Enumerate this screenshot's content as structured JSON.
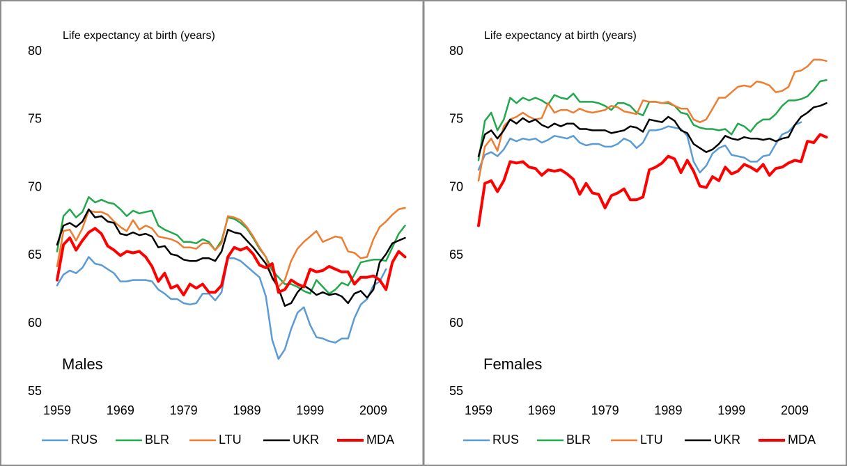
{
  "chart_data": [
    {
      "type": "line",
      "ylabel": "Life expectancy at birth (years)",
      "annotation": "Males",
      "x": [
        1959,
        1960,
        1961,
        1962,
        1963,
        1964,
        1965,
        1966,
        1967,
        1968,
        1969,
        1970,
        1971,
        1972,
        1973,
        1974,
        1975,
        1976,
        1977,
        1978,
        1979,
        1980,
        1981,
        1982,
        1983,
        1984,
        1985,
        1986,
        1987,
        1988,
        1989,
        1990,
        1991,
        1992,
        1993,
        1994,
        1995,
        1996,
        1997,
        1998,
        1999,
        2000,
        2001,
        2002,
        2003,
        2004,
        2005,
        2006,
        2007,
        2008,
        2009,
        2010,
        2011,
        2012,
        2013,
        2014
      ],
      "series": [
        {
          "name": "RUS",
          "color": "#5b9bd5",
          "linewidth": 2.5,
          "values": [
            62.8,
            63.6,
            63.9,
            63.7,
            64.1,
            64.9,
            64.4,
            64.3,
            64.0,
            63.7,
            63.1,
            63.1,
            63.2,
            63.2,
            63.2,
            63.1,
            62.5,
            62.2,
            61.8,
            61.8,
            61.5,
            61.4,
            61.5,
            62.2,
            62.2,
            61.7,
            62.3,
            64.8,
            64.8,
            64.6,
            64.2,
            63.8,
            63.4,
            62.0,
            58.8,
            57.4,
            58.1,
            59.6,
            60.8,
            61.2,
            59.9,
            59.0,
            58.9,
            58.7,
            58.6,
            58.9,
            58.9,
            60.4,
            61.4,
            61.8,
            62.8,
            63.1,
            64.0,
            null,
            null,
            null
          ]
        },
        {
          "name": "BLR",
          "color": "#22a84c",
          "linewidth": 2.5,
          "values": [
            65.3,
            67.9,
            68.4,
            67.8,
            68.2,
            69.3,
            68.9,
            69.1,
            68.9,
            68.8,
            68.4,
            67.9,
            68.3,
            68.1,
            68.2,
            68.3,
            67.2,
            66.9,
            66.7,
            66.5,
            66.0,
            66.0,
            65.9,
            66.2,
            66.0,
            65.4,
            66.1,
            67.8,
            67.7,
            67.4,
            67.0,
            66.3,
            65.5,
            64.9,
            63.9,
            63.4,
            62.9,
            62.9,
            62.7,
            62.4,
            62.2,
            63.2,
            62.7,
            62.2,
            62.5,
            63.0,
            62.8,
            63.6,
            64.5,
            64.6,
            64.7,
            64.7,
            64.6,
            65.6,
            66.6,
            67.2
          ]
        },
        {
          "name": "LTU",
          "color": "#ed7d31",
          "linewidth": 2.5,
          "values": [
            64.2,
            66.8,
            66.9,
            66.1,
            67.0,
            68.3,
            68.2,
            68.2,
            68.0,
            67.5,
            67.1,
            66.8,
            67.6,
            66.9,
            67.2,
            67.0,
            66.4,
            66.3,
            66.2,
            66.0,
            65.6,
            65.6,
            65.5,
            65.9,
            65.9,
            65.4,
            65.9,
            67.9,
            67.8,
            67.6,
            67.1,
            66.4,
            65.6,
            64.9,
            63.3,
            62.7,
            63.2,
            64.6,
            65.5,
            66.0,
            66.4,
            66.8,
            66.0,
            66.2,
            66.4,
            66.3,
            65.3,
            65.2,
            64.8,
            64.9,
            66.2,
            67.1,
            67.5,
            68.0,
            68.4,
            68.5
          ]
        },
        {
          "name": "UKR",
          "color": "#000000",
          "linewidth": 2.5,
          "values": [
            65.8,
            67.2,
            67.4,
            67.1,
            67.5,
            68.4,
            67.8,
            67.9,
            67.5,
            67.4,
            66.6,
            66.5,
            66.7,
            66.5,
            66.6,
            66.4,
            65.6,
            65.7,
            65.1,
            65.0,
            64.7,
            64.6,
            64.6,
            64.8,
            64.8,
            64.6,
            65.3,
            66.9,
            66.7,
            66.6,
            66.1,
            65.6,
            65.0,
            64.4,
            63.4,
            62.6,
            61.3,
            61.5,
            62.3,
            62.8,
            62.5,
            62.1,
            62.3,
            62.1,
            62.2,
            62.0,
            61.5,
            62.2,
            62.4,
            61.9,
            62.5,
            64.5,
            65.1,
            65.9,
            66.1,
            66.3
          ]
        },
        {
          "name": "MDA",
          "color": "#ff0000",
          "linewidth": 4,
          "values": [
            63.2,
            65.8,
            66.3,
            65.4,
            66.1,
            66.7,
            67.0,
            66.6,
            65.7,
            65.4,
            65.0,
            65.3,
            65.2,
            65.3,
            64.9,
            64.2,
            63.1,
            63.7,
            62.6,
            62.8,
            62.1,
            62.9,
            62.6,
            62.9,
            62.3,
            62.3,
            62.8,
            64.9,
            65.6,
            65.4,
            65.6,
            65.1,
            64.3,
            64.1,
            64.4,
            62.3,
            62.5,
            63.2,
            62.9,
            62.7,
            64.0,
            63.8,
            63.9,
            64.2,
            64.0,
            63.8,
            63.8,
            62.9,
            63.4,
            63.4,
            63.5,
            63.2,
            62.5,
            64.5,
            65.3,
            64.9
          ]
        }
      ],
      "xlim": [
        1959,
        2014.5
      ],
      "xticks": [
        1959,
        1969,
        1979,
        1989,
        1999,
        2009
      ],
      "ylim": [
        55,
        80
      ],
      "yticks": [
        55,
        60,
        65,
        70,
        75,
        80
      ],
      "grid": false,
      "legend": "bottom"
    },
    {
      "type": "line",
      "ylabel": "Life expectancy at birth (years)",
      "annotation": "Females",
      "x": [
        1959,
        1960,
        1961,
        1962,
        1963,
        1964,
        1965,
        1966,
        1967,
        1968,
        1969,
        1970,
        1971,
        1972,
        1973,
        1974,
        1975,
        1976,
        1977,
        1978,
        1979,
        1980,
        1981,
        1982,
        1983,
        1984,
        1985,
        1986,
        1987,
        1988,
        1989,
        1990,
        1991,
        1992,
        1993,
        1994,
        1995,
        1996,
        1997,
        1998,
        1999,
        2000,
        2001,
        2002,
        2003,
        2004,
        2005,
        2006,
        2007,
        2008,
        2009,
        2010,
        2011,
        2012,
        2013,
        2014
      ],
      "series": [
        {
          "name": "RUS",
          "color": "#5b9bd5",
          "linewidth": 2.5,
          "values": [
            71.3,
            72.4,
            72.6,
            72.3,
            72.8,
            73.6,
            73.4,
            73.6,
            73.5,
            73.6,
            73.3,
            73.5,
            73.8,
            73.7,
            73.6,
            73.8,
            73.3,
            73.1,
            73.2,
            73.2,
            73.0,
            73.0,
            73.2,
            73.6,
            73.4,
            72.9,
            73.3,
            74.2,
            74.2,
            74.3,
            74.5,
            74.4,
            74.3,
            73.8,
            71.9,
            71.1,
            71.6,
            72.5,
            72.9,
            73.1,
            72.4,
            72.3,
            72.2,
            71.9,
            71.9,
            72.3,
            72.4,
            73.2,
            73.9,
            74.1,
            74.6,
            74.8,
            null,
            null,
            null,
            null
          ]
        },
        {
          "name": "BLR",
          "color": "#22a84c",
          "linewidth": 2.5,
          "values": [
            72.0,
            74.9,
            75.5,
            74.2,
            75.0,
            76.6,
            76.2,
            76.6,
            76.4,
            76.6,
            76.4,
            76.1,
            76.8,
            76.6,
            76.5,
            76.9,
            76.3,
            76.3,
            76.3,
            76.2,
            76.0,
            75.7,
            76.2,
            76.2,
            76.0,
            75.5,
            75.3,
            76.3,
            76.3,
            76.2,
            76.2,
            76.0,
            75.5,
            75.4,
            74.6,
            74.4,
            74.3,
            74.3,
            74.2,
            74.3,
            73.9,
            74.7,
            74.5,
            74.1,
            74.7,
            75.0,
            75.0,
            75.4,
            76.0,
            76.4,
            76.4,
            76.5,
            76.7,
            77.2,
            77.8,
            77.9
          ]
        },
        {
          "name": "LTU",
          "color": "#ed7d31",
          "linewidth": 2.5,
          "values": [
            70.5,
            73.0,
            73.6,
            72.7,
            74.5,
            75.0,
            75.2,
            75.5,
            75.2,
            75.0,
            75.1,
            76.2,
            75.5,
            75.7,
            75.7,
            75.5,
            75.8,
            75.6,
            75.5,
            75.6,
            75.7,
            76.0,
            75.9,
            75.6,
            75.5,
            75.4,
            76.4,
            76.3,
            76.3,
            76.2,
            76.3,
            76.0,
            75.8,
            75.8,
            75.0,
            74.8,
            75.0,
            75.8,
            76.6,
            76.6,
            77.0,
            77.4,
            77.5,
            77.4,
            77.8,
            77.7,
            77.5,
            77.0,
            77.1,
            77.4,
            78.5,
            78.6,
            78.9,
            79.4,
            79.4,
            79.3
          ]
        },
        {
          "name": "UKR",
          "color": "#000000",
          "linewidth": 2.5,
          "values": [
            72.3,
            73.9,
            74.2,
            73.6,
            74.2,
            75.0,
            74.7,
            75.1,
            74.8,
            75.0,
            74.6,
            74.4,
            74.7,
            74.5,
            74.7,
            74.7,
            74.3,
            74.3,
            74.2,
            74.2,
            74.2,
            74.0,
            74.1,
            74.2,
            74.5,
            74.4,
            74.1,
            75.0,
            74.9,
            74.8,
            75.2,
            74.9,
            74.2,
            74.0,
            73.2,
            72.9,
            72.6,
            72.8,
            73.2,
            73.8,
            73.6,
            73.5,
            73.7,
            73.6,
            73.6,
            73.5,
            73.6,
            73.4,
            73.6,
            73.7,
            74.6,
            75.2,
            75.5,
            75.9,
            76.0,
            76.2
          ]
        },
        {
          "name": "MDA",
          "color": "#ff0000",
          "linewidth": 4,
          "values": [
            67.2,
            70.3,
            70.5,
            69.7,
            70.5,
            71.9,
            71.8,
            71.9,
            71.5,
            71.4,
            70.9,
            71.3,
            71.2,
            71.3,
            71.0,
            70.6,
            69.5,
            70.3,
            69.6,
            69.5,
            68.5,
            69.4,
            69.6,
            69.9,
            69.1,
            69.1,
            69.3,
            71.3,
            71.5,
            71.8,
            72.3,
            72.1,
            71.1,
            72.0,
            71.2,
            70.1,
            70.0,
            70.8,
            70.5,
            71.5,
            71.0,
            71.2,
            71.7,
            71.5,
            71.2,
            71.7,
            70.9,
            71.4,
            71.5,
            71.8,
            72.0,
            71.9,
            73.4,
            73.3,
            73.9,
            73.7
          ]
        }
      ],
      "xlim": [
        1959,
        2014.5
      ],
      "xticks": [
        1959,
        1969,
        1979,
        1989,
        1999,
        2009
      ],
      "ylim": [
        55,
        80
      ],
      "yticks": [
        55,
        60,
        65,
        70,
        75,
        80
      ],
      "grid": false,
      "legend": "bottom"
    }
  ]
}
